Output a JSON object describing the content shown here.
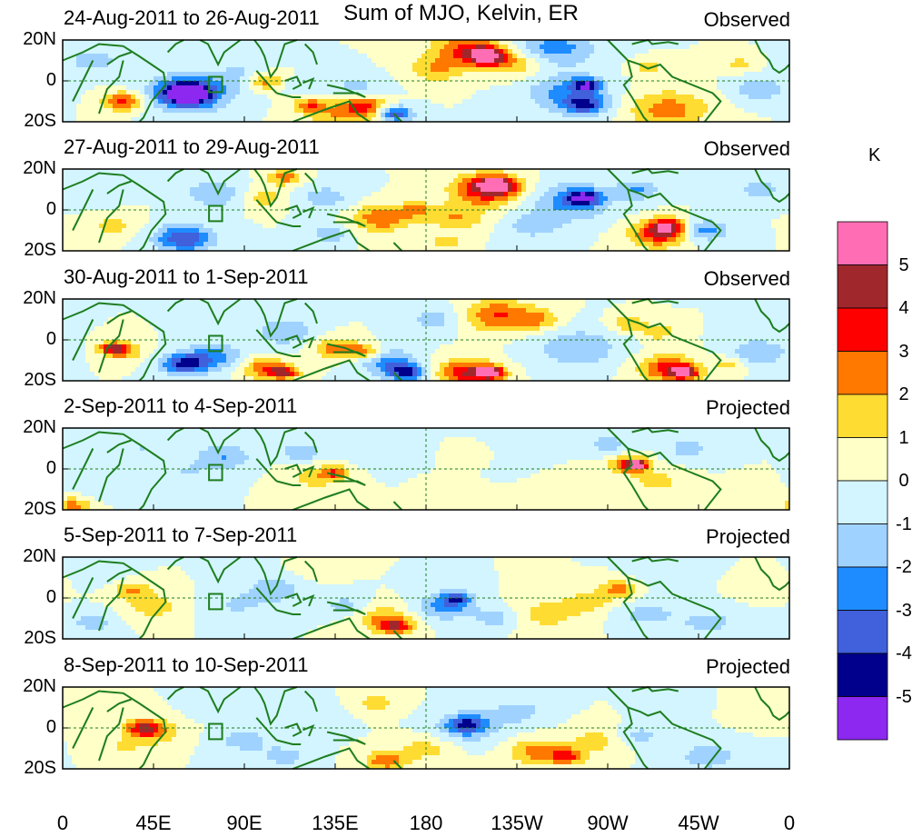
{
  "title": "Sum of MJO, Kelvin, ER",
  "chart_data": {
    "type": "heatmap",
    "title": "Sum of MJO, Kelvin, ER",
    "unit": "K",
    "x_ticks": [
      "0",
      "45E",
      "90E",
      "135E",
      "180",
      "135W",
      "90W",
      "45W",
      "0"
    ],
    "y_ticks": [
      "20N",
      "0",
      "20S"
    ],
    "x_range_deg": [
      0,
      360
    ],
    "y_range_deg": [
      -20,
      20
    ],
    "colorbar": {
      "label": "K",
      "tick_labels": [
        "5",
        "4",
        "3",
        "2",
        "1",
        "0",
        "-1",
        "-2",
        "-3",
        "-4",
        "-5"
      ],
      "colors": [
        "#ff6eb4",
        "#a0282d",
        "#ff0000",
        "#ff7800",
        "#ffdc32",
        "#ffffc8",
        "#d2f5ff",
        "#a0d2ff",
        "#1e8cff",
        "#4160dc",
        "#00008c",
        "#8c28f0"
      ]
    },
    "panels": [
      {
        "date_range": "24-Aug-2011 to 26-Aug-2011",
        "status": "Observed",
        "blobs": [
          [
            100,
            0,
            7,
            3.0
          ],
          [
            122,
            -12,
            5,
            2.5
          ],
          [
            137,
            -16,
            12,
            2.0
          ],
          [
            165,
            -16,
            6,
            -4.0
          ],
          [
            145,
            -4,
            10,
            -1.5
          ],
          [
            150,
            -12,
            8,
            3.0
          ],
          [
            200,
            16,
            12,
            3.0
          ],
          [
            210,
            12,
            7,
            5.0
          ],
          [
            185,
            6,
            10,
            2.0
          ],
          [
            225,
            8,
            10,
            2.0
          ],
          [
            244,
            16,
            14,
            -2.5
          ],
          [
            250,
            -6,
            14,
            -2.5
          ],
          [
            260,
            -2,
            5,
            -4.0
          ],
          [
            260,
            -12,
            8,
            -2.0
          ],
          [
            300,
            -14,
            14,
            2.5
          ],
          [
            290,
            6,
            6,
            1.5
          ],
          [
            258,
            -12,
            6,
            -1.5
          ],
          [
            30,
            -10,
            7,
            3.5
          ],
          [
            62,
            -6,
            14,
            -3.5
          ],
          [
            62,
            -6,
            8,
            -5.0
          ],
          [
            15,
            10,
            10,
            -1.5
          ],
          [
            90,
            2,
            10,
            -1.5
          ],
          [
            115,
            -2,
            6,
            -1.0
          ],
          [
            345,
            -4,
            9,
            -2.0
          ],
          [
            335,
            8,
            6,
            1.5
          ]
        ]
      },
      {
        "date_range": "27-Aug-2011 to 29-Aug-2011",
        "status": "Observed",
        "blobs": [
          [
            210,
            10,
            12,
            4.0
          ],
          [
            215,
            12,
            6,
            5.0
          ],
          [
            195,
            -4,
            10,
            2.0
          ],
          [
            252,
            4,
            14,
            -2.5
          ],
          [
            258,
            6,
            6,
            -4.0
          ],
          [
            233,
            -8,
            10,
            -1.5
          ],
          [
            295,
            -12,
            10,
            3.5
          ],
          [
            300,
            -8,
            6,
            4.0
          ],
          [
            285,
            10,
            8,
            -2.0
          ],
          [
            318,
            -10,
            8,
            -2.5
          ],
          [
            345,
            10,
            8,
            -1.5
          ],
          [
            158,
            -4,
            10,
            3.0
          ],
          [
            175,
            0,
            6,
            2.0
          ],
          [
            130,
            6,
            10,
            -1.5
          ],
          [
            110,
            16,
            6,
            2.5
          ],
          [
            100,
            6,
            8,
            1.5
          ],
          [
            60,
            -14,
            10,
            -4.0
          ],
          [
            75,
            8,
            10,
            -2.0
          ],
          [
            25,
            -8,
            8,
            1.5
          ],
          [
            15,
            8,
            8,
            -1.0
          ],
          [
            190,
            -16,
            6,
            1.5
          ],
          [
            132,
            -12,
            6,
            -2.0
          ]
        ]
      },
      {
        "date_range": "30-Aug-2011 to 1-Sep-2011",
        "status": "Observed",
        "blobs": [
          [
            25,
            -4,
            5,
            3.5
          ],
          [
            30,
            -6,
            7,
            2.0
          ],
          [
            60,
            -12,
            8,
            -4.0
          ],
          [
            75,
            -8,
            10,
            -2.5
          ],
          [
            100,
            -14,
            8,
            3.0
          ],
          [
            110,
            -16,
            5,
            3.5
          ],
          [
            135,
            -4,
            8,
            2.5
          ],
          [
            150,
            -6,
            6,
            3.0
          ],
          [
            170,
            -16,
            7,
            -4.0
          ],
          [
            160,
            -10,
            10,
            -2.5
          ],
          [
            110,
            4,
            10,
            -2.0
          ],
          [
            185,
            10,
            10,
            -1.5
          ],
          [
            200,
            -16,
            10,
            4.0
          ],
          [
            212,
            -16,
            5,
            5.0
          ],
          [
            215,
            12,
            12,
            3.0
          ],
          [
            235,
            10,
            8,
            2.0
          ],
          [
            255,
            -4,
            14,
            -2.0
          ],
          [
            280,
            8,
            6,
            2.0
          ],
          [
            300,
            -14,
            10,
            3.5
          ],
          [
            308,
            -16,
            5,
            4.0
          ],
          [
            295,
            4,
            6,
            2.0
          ],
          [
            345,
            -6,
            10,
            -2.0
          ],
          [
            330,
            -12,
            6,
            1.5
          ]
        ]
      },
      {
        "date_range": "2-Sep-2011 to 4-Sep-2011",
        "status": "Projected",
        "blobs": [
          [
            280,
            2,
            7,
            3.0
          ],
          [
            285,
            2,
            4,
            4.0
          ],
          [
            295,
            -6,
            8,
            1.5
          ],
          [
            270,
            12,
            8,
            -1.5
          ],
          [
            310,
            10,
            8,
            -1.5
          ],
          [
            250,
            -8,
            12,
            1.0
          ],
          [
            225,
            6,
            12,
            -1.0
          ],
          [
            125,
            -4,
            10,
            1.5
          ],
          [
            135,
            -2,
            5,
            2.5
          ],
          [
            118,
            8,
            7,
            -2.0
          ],
          [
            80,
            6,
            10,
            -2.0
          ],
          [
            60,
            -2,
            10,
            -1.0
          ],
          [
            40,
            10,
            8,
            -1.0
          ],
          [
            5,
            -18,
            6,
            2.5
          ],
          [
            20,
            -8,
            8,
            -1.0
          ],
          [
            160,
            8,
            10,
            -1.0
          ],
          [
            195,
            -10,
            8,
            1.0
          ],
          [
            205,
            6,
            8,
            1.0
          ],
          [
            340,
            -14,
            8,
            1.0
          ]
        ]
      },
      {
        "date_range": "5-Sep-2011 to 7-Sep-2011",
        "status": "Projected",
        "blobs": [
          [
            165,
            -14,
            6,
            3.5
          ],
          [
            158,
            -10,
            10,
            2.0
          ],
          [
            140,
            -4,
            8,
            -1.5
          ],
          [
            190,
            -4,
            10,
            -2.5
          ],
          [
            195,
            0,
            5,
            -3.0
          ],
          [
            215,
            -10,
            8,
            -1.5
          ],
          [
            240,
            -8,
            12,
            1.5
          ],
          [
            260,
            -2,
            8,
            1.5
          ],
          [
            275,
            4,
            7,
            2.5
          ],
          [
            290,
            -8,
            10,
            -1.5
          ],
          [
            320,
            -12,
            10,
            -1.5
          ],
          [
            300,
            12,
            10,
            -1.0
          ],
          [
            105,
            4,
            12,
            -1.5
          ],
          [
            85,
            -4,
            10,
            -1.0
          ],
          [
            35,
            4,
            7,
            2.0
          ],
          [
            45,
            -4,
            10,
            1.5
          ],
          [
            15,
            -12,
            8,
            -1.5
          ],
          [
            20,
            12,
            8,
            -1.0
          ],
          [
            125,
            14,
            8,
            1.0
          ],
          [
            345,
            6,
            8,
            1.0
          ]
        ]
      },
      {
        "date_range": "8-Sep-2011 to 10-Sep-2011",
        "status": "Projected",
        "blobs": [
          [
            40,
            0,
            6,
            3.0
          ],
          [
            45,
            -2,
            10,
            2.0
          ],
          [
            30,
            -10,
            8,
            1.0
          ],
          [
            90,
            -6,
            10,
            -1.5
          ],
          [
            75,
            10,
            8,
            -1.0
          ],
          [
            125,
            6,
            10,
            -1.0
          ],
          [
            110,
            -14,
            8,
            -1.5
          ],
          [
            155,
            12,
            8,
            1.5
          ],
          [
            160,
            -16,
            7,
            3.0
          ],
          [
            180,
            -10,
            10,
            1.5
          ],
          [
            200,
            0,
            12,
            -2.0
          ],
          [
            200,
            2,
            6,
            -3.0
          ],
          [
            225,
            8,
            10,
            -1.5
          ],
          [
            235,
            -12,
            10,
            2.5
          ],
          [
            250,
            -14,
            6,
            3.0
          ],
          [
            265,
            -6,
            10,
            1.5
          ],
          [
            285,
            -4,
            8,
            -1.5
          ],
          [
            300,
            8,
            8,
            -1.0
          ],
          [
            320,
            -14,
            12,
            -1.5
          ],
          [
            345,
            6,
            8,
            1.0
          ]
        ]
      }
    ]
  }
}
